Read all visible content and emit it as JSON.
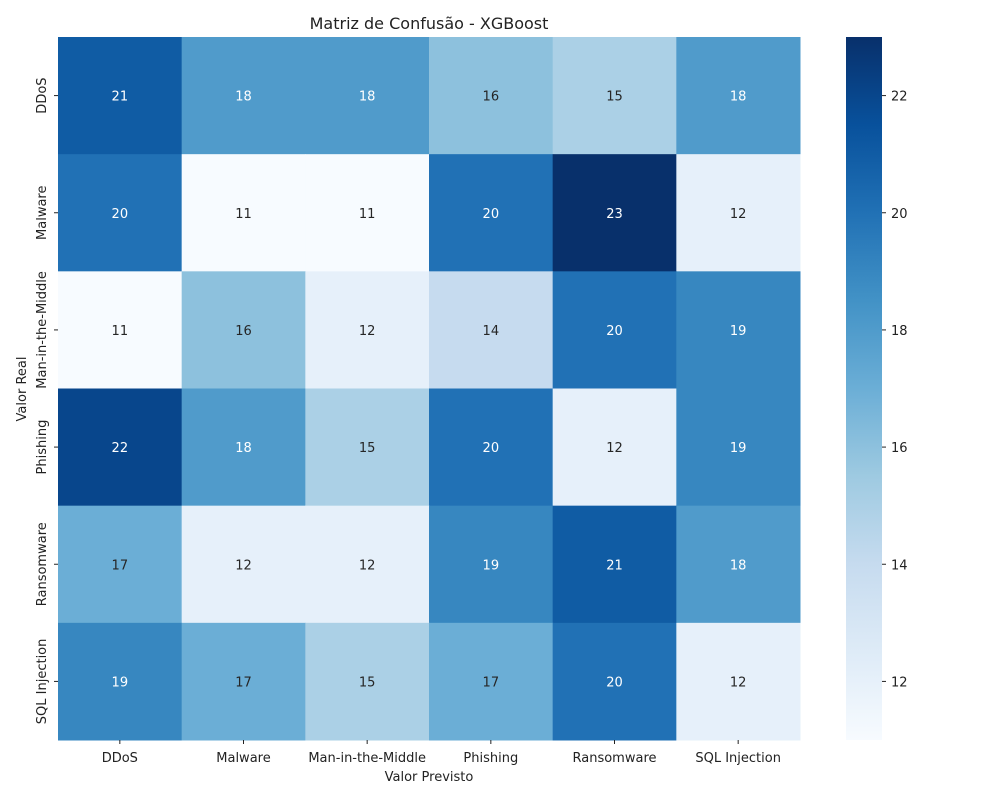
{
  "chart_data": {
    "type": "heatmap",
    "title": "Matriz de Confusão - XGBoost",
    "xlabel": "Valor Previsto",
    "ylabel": "Valor Real",
    "x_categories": [
      "DDoS",
      "Malware",
      "Man-in-the-Middle",
      "Phishing",
      "Ransomware",
      "SQL Injection"
    ],
    "y_categories": [
      "DDoS",
      "Malware",
      "Man-in-the-Middle",
      "Phishing",
      "Ransomware",
      "SQL Injection"
    ],
    "values": [
      [
        21,
        18,
        18,
        16,
        15,
        18
      ],
      [
        20,
        11,
        11,
        20,
        23,
        12
      ],
      [
        11,
        16,
        12,
        14,
        20,
        19
      ],
      [
        22,
        18,
        15,
        20,
        12,
        19
      ],
      [
        17,
        12,
        12,
        19,
        21,
        18
      ],
      [
        19,
        17,
        15,
        17,
        20,
        12
      ]
    ],
    "colorscale": "Blues",
    "value_range": [
      11,
      23
    ],
    "colorbar_ticks": [
      "12",
      "14",
      "16",
      "18",
      "20",
      "22"
    ],
    "colorbar_tick_values": [
      12,
      14,
      16,
      18,
      20,
      22
    ]
  }
}
